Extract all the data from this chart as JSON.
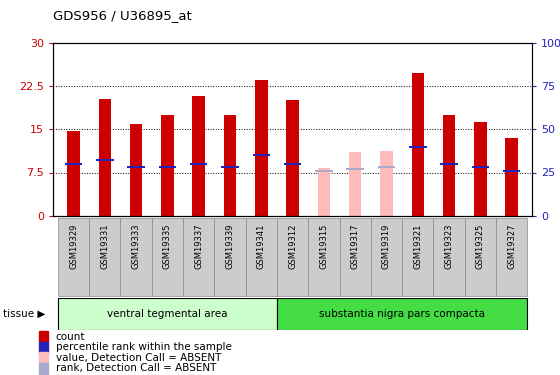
{
  "title": "GDS956 / U36895_at",
  "samples": [
    "GSM19329",
    "GSM19331",
    "GSM19333",
    "GSM19335",
    "GSM19337",
    "GSM19339",
    "GSM19341",
    "GSM19312",
    "GSM19315",
    "GSM19317",
    "GSM19319",
    "GSM19321",
    "GSM19323",
    "GSM19325",
    "GSM19327"
  ],
  "counts": [
    14.8,
    20.2,
    16.0,
    17.5,
    20.8,
    17.5,
    23.6,
    20.1,
    8.2,
    11.1,
    11.3,
    24.8,
    17.5,
    16.2,
    13.5
  ],
  "rank_pct": [
    30,
    32,
    28,
    28,
    30,
    28,
    35,
    30,
    26,
    27,
    28,
    40,
    30,
    28,
    26
  ],
  "absent": [
    false,
    false,
    false,
    false,
    false,
    false,
    false,
    false,
    true,
    true,
    true,
    false,
    false,
    false,
    false
  ],
  "ylim_left": [
    0,
    30
  ],
  "ylim_right": [
    0,
    100
  ],
  "yticks_left": [
    0,
    7.5,
    15,
    22.5,
    30
  ],
  "ytick_labels_left": [
    "0",
    "7.5",
    "15",
    "22.5",
    "30"
  ],
  "yticks_right": [
    0,
    25,
    50,
    75,
    100
  ],
  "ytick_labels_right": [
    "0",
    "25",
    "50",
    "75",
    "100%"
  ],
  "group1_label": "ventral tegmental area",
  "group2_label": "substantia nigra pars compacta",
  "group1_count": 7,
  "group2_count": 8,
  "tissue_label": "tissue",
  "bar_color_present": "#cc0000",
  "bar_color_absent": "#ffbbbb",
  "rank_color_present": "#2222bb",
  "rank_color_absent": "#aaaacc",
  "bar_width": 0.4,
  "group1_bg": "#ccffcc",
  "group2_bg": "#44dd44",
  "xtick_bg": "#cccccc",
  "legend_items": [
    {
      "color": "#cc0000",
      "label": "count"
    },
    {
      "color": "#2222bb",
      "label": "percentile rank within the sample"
    },
    {
      "color": "#ffbbbb",
      "label": "value, Detection Call = ABSENT"
    },
    {
      "color": "#aaaacc",
      "label": "rank, Detection Call = ABSENT"
    }
  ]
}
